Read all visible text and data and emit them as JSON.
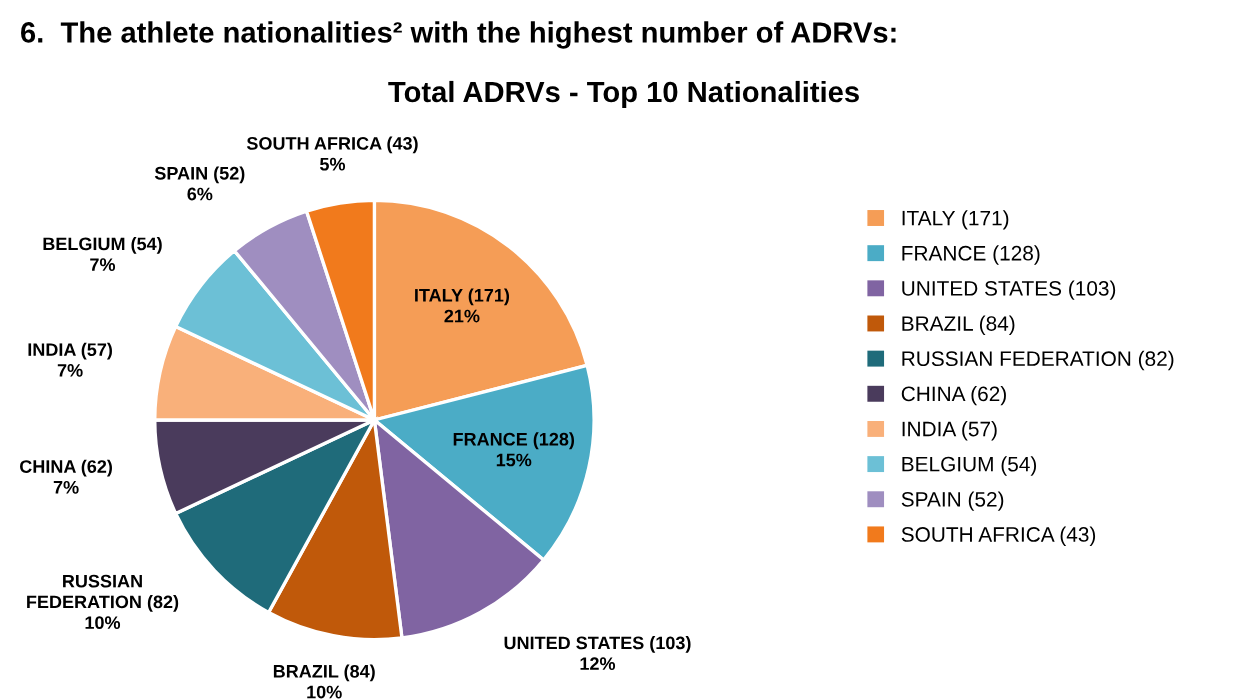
{
  "chart_data": {
    "type": "pie",
    "title": "Total ADRVs - Top 10 Nationalities",
    "annotations": [
      "6.  The athlete nationalities² with the highest number of ADRVs:"
    ],
    "categories": [
      "ITALY (171)",
      "FRANCE (128)",
      "UNITED STATES (103)",
      "BRAZIL (84)",
      "RUSSIAN FEDERATION (82)",
      "CHINA (62)",
      "INDIA (57)",
      "BELGIUM (54)",
      "SPAIN (52)",
      "SOUTH AFRICA (43)"
    ],
    "values": [
      21,
      15,
      12,
      10,
      10,
      7,
      7,
      7,
      6,
      5
    ],
    "value_labels": [
      "21%",
      "15%",
      "12%",
      "10%",
      "10%",
      "7%",
      "7%",
      "7%",
      "6%",
      "5%"
    ],
    "colors": [
      "#f59d56",
      "#4bacc6",
      "#8064a2",
      "#c0590a",
      "#1f6b7a",
      "#4a3b5c",
      "#f9b07a",
      "#6cc0d6",
      "#9f8ec0",
      "#f17a1c"
    ],
    "legend": "right"
  }
}
